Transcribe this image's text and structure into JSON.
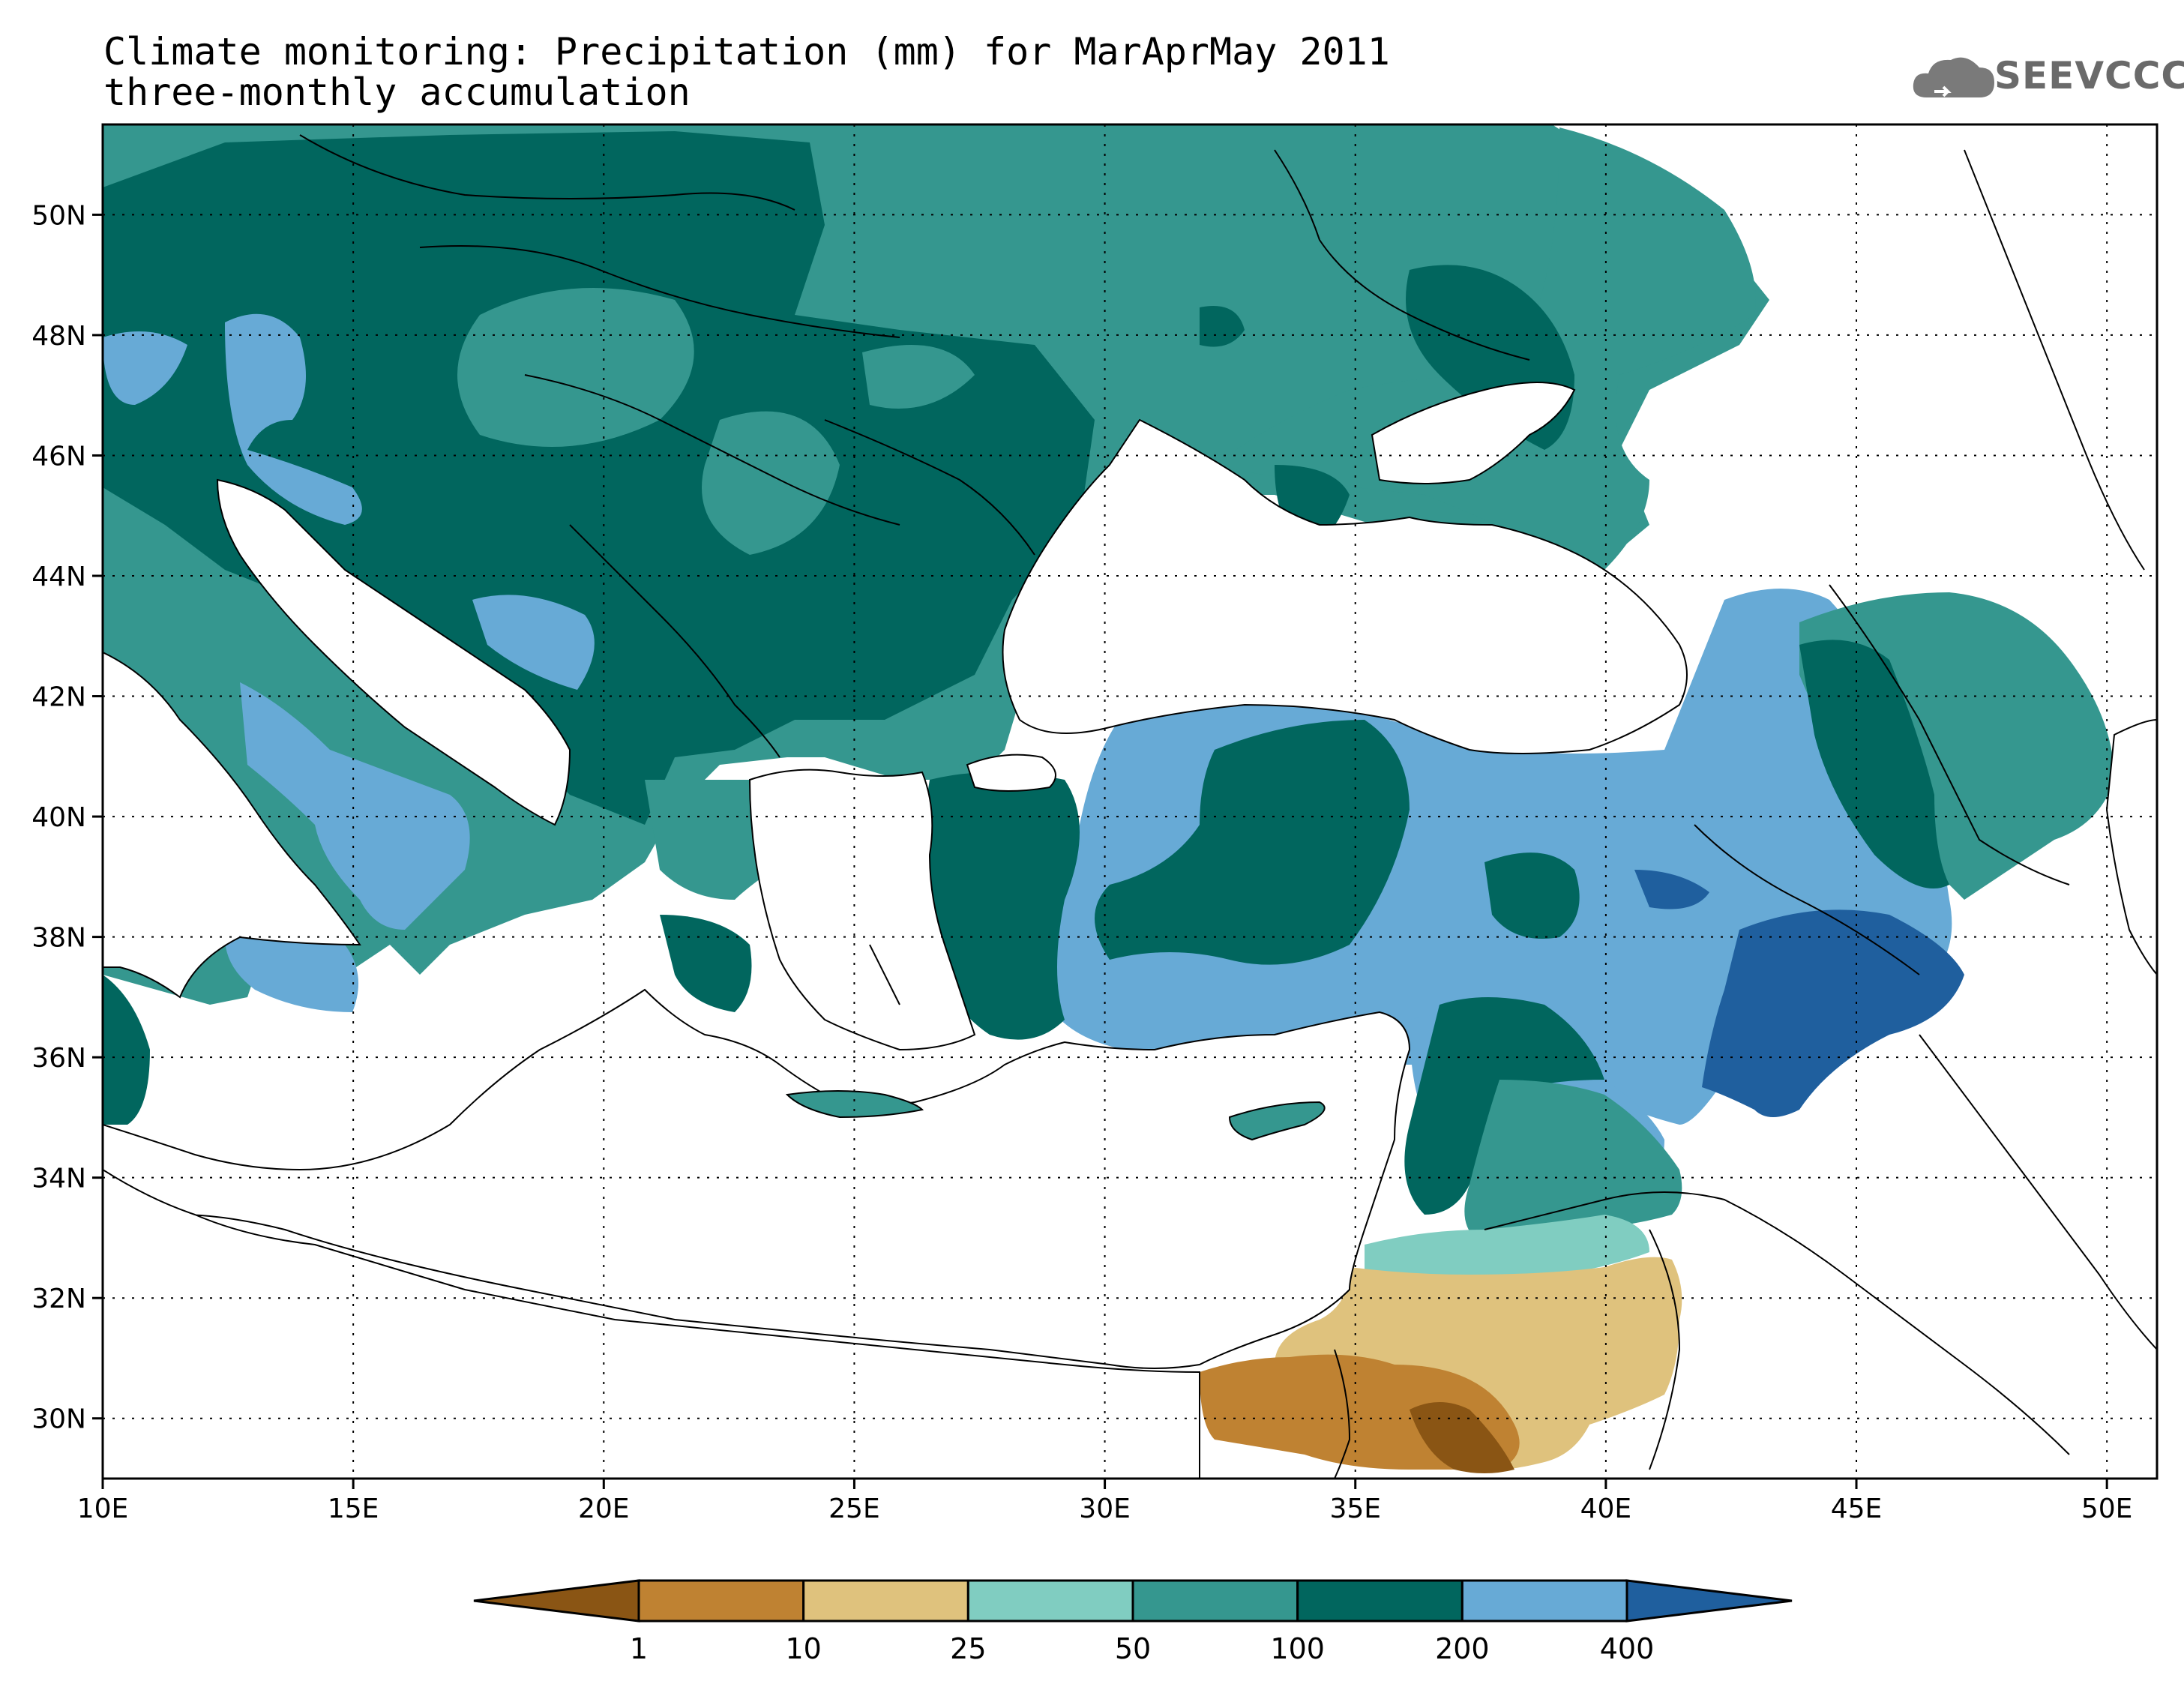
{
  "title": {
    "line1": "Climate monitoring: Precipitation (mm) for MarAprMay 2011",
    "line2": "three-monthly accumulation"
  },
  "logo": {
    "text": "SEEVCCC",
    "icon": "cloud-icon"
  },
  "map": {
    "lon_range": [
      10,
      51
    ],
    "lat_range": [
      29,
      51.5
    ],
    "x_ticks": [
      "10E",
      "15E",
      "20E",
      "25E",
      "30E",
      "35E",
      "40E",
      "45E",
      "50E"
    ],
    "y_ticks": [
      "30N",
      "32N",
      "34N",
      "36N",
      "38N",
      "40N",
      "42N",
      "44N",
      "46N",
      "48N",
      "50N"
    ]
  },
  "colorbar": {
    "thresholds": [
      "1",
      "10",
      "25",
      "50",
      "100",
      "200",
      "400"
    ],
    "colors": [
      "#8a5514",
      "#bf8232",
      "#dfc27d",
      "#80cdc1",
      "#35978f",
      "#01665e",
      "#67aad6",
      "#1f5f9e"
    ]
  },
  "colors": {
    "wettest": "#1f5f9e",
    "wet": "#67aad6",
    "dark_teal": "#01665e",
    "teal": "#35978f",
    "light_teal": "#80cdc1",
    "tan": "#dfc27d",
    "brown": "#bf8232",
    "dark_brown": "#8a5514"
  }
}
